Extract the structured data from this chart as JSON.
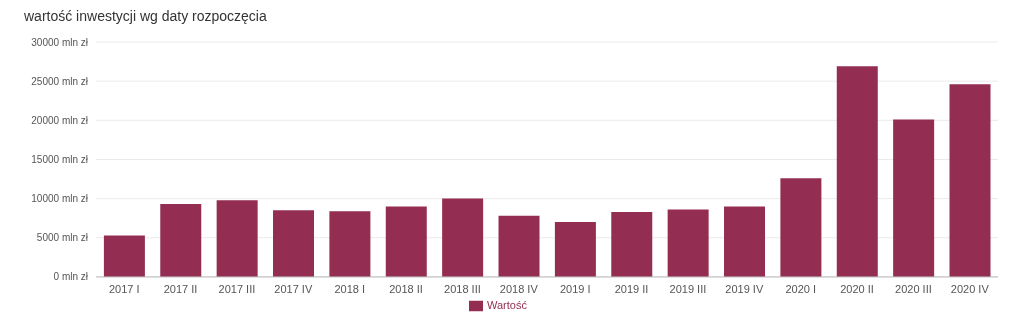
{
  "chart_data": {
    "type": "bar",
    "title": "wartość inwestycji wg daty rozpoczęcia",
    "categories": [
      "2017 I",
      "2017 II",
      "2017 III",
      "2017 IV",
      "2018 I",
      "2018 II",
      "2018 III",
      "2018 IV",
      "2019 I",
      "2019 II",
      "2019 III",
      "2019 IV",
      "2020 I",
      "2020 II",
      "2020 III",
      "2020 IV"
    ],
    "series": [
      {
        "name": "Wartość",
        "color": "#932d51",
        "values": [
          5300,
          9300,
          9800,
          8500,
          8400,
          9000,
          10000,
          7800,
          7000,
          8300,
          8600,
          9000,
          12600,
          26900,
          20100,
          24600
        ]
      }
    ],
    "ylim": [
      0,
      30000
    ],
    "yticks": [
      {
        "value": 0,
        "label": "0 mln zł"
      },
      {
        "value": 5000,
        "label": "5000 mln zł"
      },
      {
        "value": 10000,
        "label": "10000 mln zł"
      },
      {
        "value": 15000,
        "label": "15000 mln zł"
      },
      {
        "value": 20000,
        "label": "20000 mln zł"
      },
      {
        "value": 25000,
        "label": "25000 mln zł"
      },
      {
        "value": 30000,
        "label": "30000 mln zł"
      }
    ],
    "grid": "y",
    "legend": "bottom"
  }
}
